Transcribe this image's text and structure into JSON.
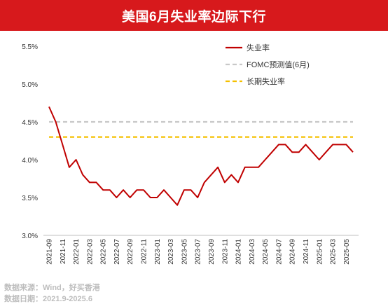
{
  "title": "美国6月失业率边际下行",
  "source": {
    "line1": "数据来源：Wind，好买香港",
    "line2": "数据日期：2021.9-2025.6"
  },
  "chart_data": {
    "type": "line",
    "title": "美国6月失业率边际下行",
    "ylim": [
      3.0,
      5.5
    ],
    "yticks": [
      "3.0%",
      "3.5%",
      "4.0%",
      "4.5%",
      "5.0%",
      "5.5%"
    ],
    "ytick_values": [
      3.0,
      3.5,
      4.0,
      4.5,
      5.0,
      5.5
    ],
    "grid": false,
    "legend_position": "top-right",
    "x_categories": [
      "2021-09",
      "2021-10",
      "2021-11",
      "2021-12",
      "2022-01",
      "2022-02",
      "2022-03",
      "2022-04",
      "2022-05",
      "2022-06",
      "2022-07",
      "2022-08",
      "2022-09",
      "2022-10",
      "2022-11",
      "2022-12",
      "2023-01",
      "2023-02",
      "2023-03",
      "2023-04",
      "2023-05",
      "2023-06",
      "2023-07",
      "2023-08",
      "2023-09",
      "2023-10",
      "2023-11",
      "2023-12",
      "2024-01",
      "2024-02",
      "2024-03",
      "2024-04",
      "2024-05",
      "2024-06",
      "2024-07",
      "2024-08",
      "2024-09",
      "2024-10",
      "2024-11",
      "2024-12",
      "2025-01",
      "2025-02",
      "2025-03",
      "2025-04",
      "2025-05",
      "2025-06"
    ],
    "x_tick_labels": [
      "2021-09",
      "2021-11",
      "2022-01",
      "2022-03",
      "2022-05",
      "2022-07",
      "2022-09",
      "2022-11",
      "2023-01",
      "2023-03",
      "2023-05",
      "2023-07",
      "2023-09",
      "2023-11",
      "2024-01",
      "2024-03",
      "2024-05",
      "2024-07",
      "2024-09",
      "2024-11",
      "2025-01",
      "2025-03",
      "2025-05"
    ],
    "series": [
      {
        "name": "失业率",
        "color": "#c00000",
        "style": "solid",
        "values": [
          4.7,
          4.5,
          4.2,
          3.9,
          4.0,
          3.8,
          3.7,
          3.7,
          3.6,
          3.6,
          3.5,
          3.6,
          3.5,
          3.6,
          3.6,
          3.5,
          3.5,
          3.6,
          3.5,
          3.4,
          3.6,
          3.6,
          3.5,
          3.7,
          3.8,
          3.9,
          3.7,
          3.8,
          3.7,
          3.9,
          3.9,
          3.9,
          4.0,
          4.1,
          4.2,
          4.2,
          4.1,
          4.1,
          4.2,
          4.1,
          4.0,
          4.1,
          4.2,
          4.2,
          4.2,
          4.1
        ]
      },
      {
        "name": "FOMC预测值(6月)",
        "color": "#c8c8c8",
        "style": "dashed",
        "values": [
          4.5,
          4.5
        ]
      },
      {
        "name": "长期失业率",
        "color": "#f5c000",
        "style": "dashed",
        "values": [
          4.3,
          4.3
        ]
      }
    ]
  }
}
